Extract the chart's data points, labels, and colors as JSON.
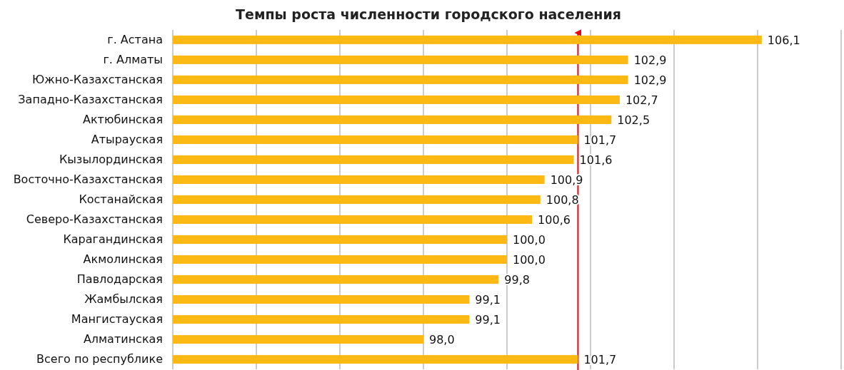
{
  "chart_data": {
    "type": "bar",
    "orientation": "horizontal",
    "title": "Темпы роста численности городского населения",
    "categories": [
      "г. Астана",
      "г. Алматы",
      "Южно-Казахстанская",
      "Западно-Казахстанская",
      "Актюбинская",
      "Атырауская",
      "Кызылординская",
      "Восточно-Казахстанская",
      "Костанайская",
      "Северо-Казахстанская",
      "Карагандинская",
      "Акмолинская",
      "Павлодарская",
      "Жамбылская",
      "Мангистауская",
      "Алматинская",
      "Всего по республике"
    ],
    "values": [
      106.1,
      102.9,
      102.9,
      102.7,
      102.5,
      101.7,
      101.6,
      100.9,
      100.8,
      100.6,
      100.0,
      100.0,
      99.8,
      99.1,
      99.1,
      98.0,
      101.7
    ],
    "value_labels": [
      "106,1",
      "102,9",
      "102,9",
      "102,7",
      "102,5",
      "101,7",
      "101,6",
      "100,9",
      "100,8",
      "100,6",
      "100,0",
      "100,0",
      "99,8",
      "99,1",
      "99,1",
      "98,0",
      "101,7"
    ],
    "color": "#fdb913",
    "xlim": [
      92,
      108
    ],
    "xticks": [
      {
        "value": 92,
        "label": null
      },
      {
        "value": 94,
        "label": null
      },
      {
        "value": 96,
        "label": null
      },
      {
        "value": 98,
        "label": null
      },
      {
        "value": 100,
        "label": null
      },
      {
        "value": 102,
        "label": null
      },
      {
        "value": 104,
        "label": null
      },
      {
        "value": 106,
        "label": null
      },
      {
        "value": 108,
        "label": null
      }
    ],
    "grid": "x",
    "tick_labels": "y",
    "ref_lines": [
      {
        "axis": "x",
        "value": 101.7,
        "color": "#e30613"
      }
    ]
  }
}
